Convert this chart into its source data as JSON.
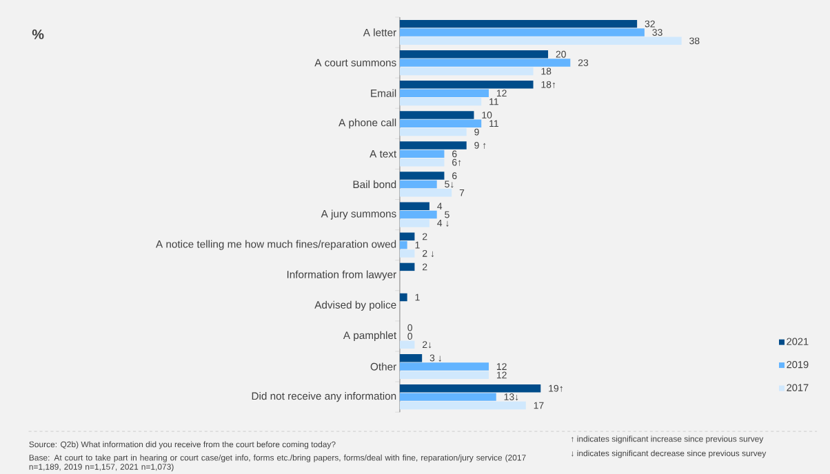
{
  "chart_data": {
    "type": "bar",
    "orientation": "horizontal",
    "title": "%",
    "categories": [
      "A letter",
      "A court summons",
      "Email",
      "A phone call",
      "A text",
      "Bail bond",
      "A jury summons",
      "A notice telling me how much fines/reparation owed",
      "Information from lawyer",
      "Advised by police",
      "A pamphlet",
      "Other",
      "Did not receive any information"
    ],
    "series": [
      {
        "name": "2021",
        "color": "#004c8a",
        "values": [
          32,
          20,
          18,
          10,
          9,
          6,
          4,
          2,
          2,
          1,
          0,
          3,
          19
        ],
        "value_labels": [
          "32",
          "20",
          "18↑",
          "10",
          "9 ↑",
          "6",
          "4",
          "2",
          "2",
          "1",
          "0",
          "3 ↓",
          "19↑"
        ]
      },
      {
        "name": "2019",
        "color": "#63b4ff",
        "values": [
          33,
          23,
          12,
          11,
          6,
          5,
          5,
          1,
          null,
          null,
          0,
          12,
          13
        ],
        "value_labels": [
          "33",
          "23",
          "12",
          "11",
          "6",
          "5↓",
          "5",
          "1",
          null,
          null,
          "0",
          "12",
          "13↓"
        ]
      },
      {
        "name": "2017",
        "color": "#d0e8fd",
        "values": [
          38,
          18,
          11,
          9,
          6,
          7,
          4,
          2,
          null,
          null,
          2,
          12,
          17
        ],
        "value_labels": [
          "38",
          "18",
          "11",
          "9",
          "6↑",
          "7",
          "4 ↓",
          "2 ↓",
          null,
          null,
          "2↓",
          "12",
          "17"
        ]
      }
    ],
    "legend": "bottom right",
    "annotations": [
      "Source: Q2b) What information did you receive from the court before coming today?",
      "Base: At court to take part in hearing or court case/get info, forms etc./bring papers, forms/deal with fine, reparation/jury service (2017 n=1,189, 2019 n=1,157, 2021 n=1,073)",
      "↑ indicates significant increase since previous survey",
      "↓ indicates significant decrease since previous survey"
    ]
  }
}
